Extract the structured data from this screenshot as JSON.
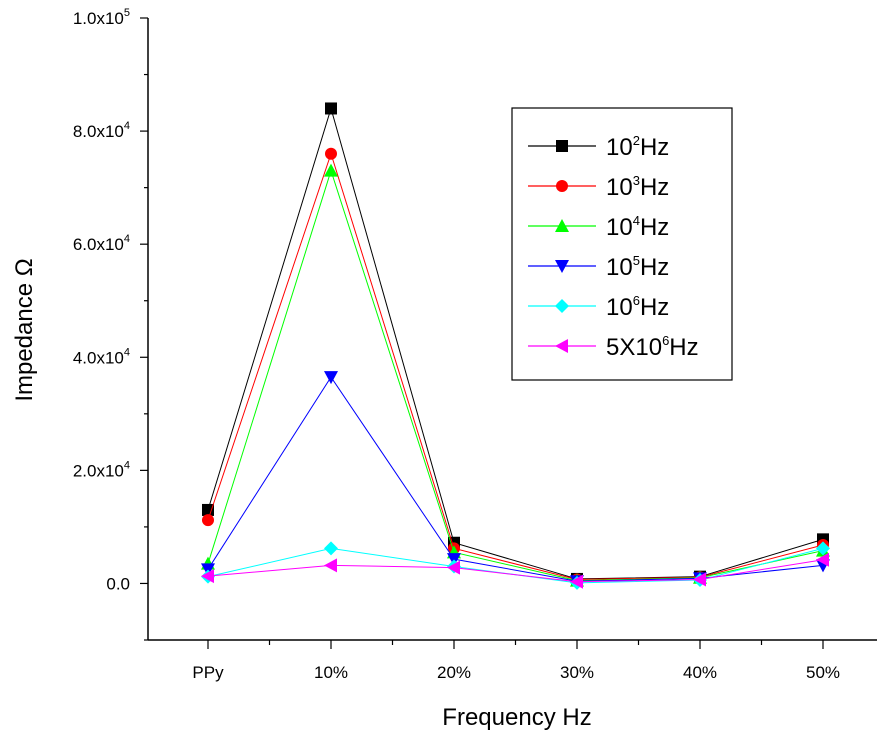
{
  "chart_data": {
    "type": "line",
    "xlabel": "Frequency Hz",
    "ylabel": "Impedance Ω",
    "categories": [
      "PPy",
      "10%",
      "20%",
      "30%",
      "40%",
      "50%"
    ],
    "ylim": [
      -10000,
      100000
    ],
    "yticks": [
      {
        "value": 0,
        "mantissa": "0.0",
        "exp": ""
      },
      {
        "value": 20000,
        "mantissa": "2.0x10",
        "exp": "4"
      },
      {
        "value": 40000,
        "mantissa": "4.0x10",
        "exp": "4"
      },
      {
        "value": 60000,
        "mantissa": "6.0x10",
        "exp": "4"
      },
      {
        "value": 80000,
        "mantissa": "8.0x10",
        "exp": "4"
      },
      {
        "value": 100000,
        "mantissa": "1.0x10",
        "exp": "5"
      }
    ],
    "grid": false,
    "legend_position": "top-right",
    "series": [
      {
        "name": "10²Hz",
        "legend_base": "10",
        "legend_sup": "2",
        "legend_tail": "Hz",
        "color": "#000000",
        "marker": "square",
        "values": [
          13000,
          84000,
          7200,
          800,
          1200,
          7800
        ]
      },
      {
        "name": "10³Hz",
        "legend_base": "10",
        "legend_sup": "3",
        "legend_tail": "Hz",
        "color": "#ff0000",
        "marker": "circle",
        "values": [
          11200,
          76000,
          6200,
          700,
          1100,
          6800
        ]
      },
      {
        "name": "10⁴Hz",
        "legend_base": "10",
        "legend_sup": "4",
        "legend_tail": "Hz",
        "color": "#00ff00",
        "marker": "triangle-up",
        "values": [
          3500,
          73000,
          5500,
          500,
          1000,
          5800
        ]
      },
      {
        "name": "10⁵Hz",
        "legend_base": "10",
        "legend_sup": "5",
        "legend_tail": "Hz",
        "color": "#0000ff",
        "marker": "triangle-down",
        "values": [
          2500,
          36500,
          4300,
          400,
          900,
          3200
        ]
      },
      {
        "name": "10⁶Hz",
        "legend_base": "10",
        "legend_sup": "6",
        "legend_tail": "Hz",
        "color": "#00ffff",
        "marker": "diamond",
        "values": [
          1200,
          6200,
          3000,
          100,
          600,
          6200
        ]
      },
      {
        "name": "5X10⁶Hz",
        "legend_base": "5X10",
        "legend_sup": "6",
        "legend_tail": "Hz",
        "color": "#ff00ff",
        "marker": "triangle-left",
        "values": [
          1300,
          3200,
          2800,
          300,
          700,
          4200
        ]
      }
    ]
  }
}
